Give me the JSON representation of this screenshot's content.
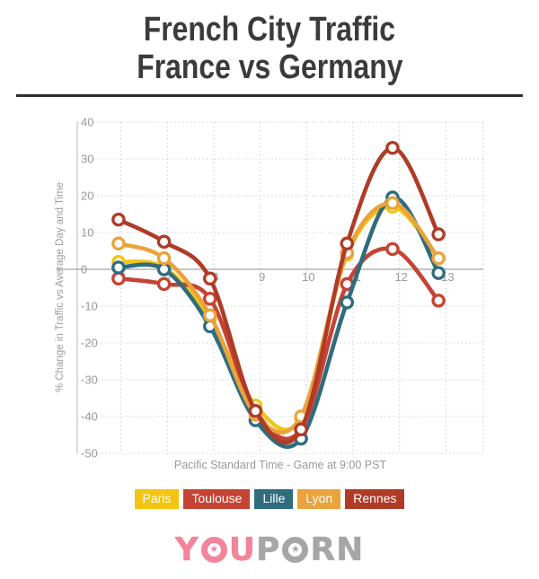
{
  "title": {
    "line1": "French City Traffic",
    "line2": "France vs Germany"
  },
  "chart_data": {
    "type": "line",
    "title": "French City Traffic France vs Germany",
    "xlabel": "Pacific Standard Time - Game at 9:00 PST",
    "ylabel": "% Change in Traffic vs Average Day and Time",
    "x": [
      5.95,
      6.93,
      7.92,
      8.9,
      9.88,
      10.87,
      11.85,
      12.84
    ],
    "x_ticks": [
      6,
      7,
      8,
      9,
      10,
      11,
      12,
      13
    ],
    "y_ticks": [
      40,
      30,
      20,
      10,
      0,
      -10,
      -20,
      -30,
      -40,
      -50
    ],
    "xlim": [
      5.1,
      13.8
    ],
    "ylim": [
      -50,
      40
    ],
    "grid": "dotted",
    "line_style": "smooth",
    "marker": "open-circle",
    "legend_position": "bottom",
    "series": [
      {
        "name": "Paris",
        "color": "#F2C512",
        "values": [
          2,
          0.5,
          -13.5,
          -37,
          -40.5,
          4,
          17,
          3
        ]
      },
      {
        "name": "Toulouse",
        "color": "#C64334",
        "values": [
          -2.5,
          -4,
          -8,
          -38.5,
          -43.5,
          -4,
          5.5,
          -8.5
        ]
      },
      {
        "name": "Lille",
        "color": "#2E6C7E",
        "values": [
          0.5,
          0,
          -15.5,
          -41,
          -46,
          -9,
          19.5,
          -1
        ]
      },
      {
        "name": "Lyon",
        "color": "#EAA33C",
        "values": [
          7,
          3,
          -12.5,
          -39.5,
          -40,
          4.5,
          18,
          3
        ]
      },
      {
        "name": "Rennes",
        "color": "#AF3B27",
        "values": [
          13.5,
          7.5,
          -2.5,
          -38.5,
          -43.5,
          7,
          33,
          9.5
        ]
      }
    ]
  },
  "colors": {
    "grid": "#cfcfcf",
    "zero_line": "#b3b3b3",
    "axis": "#c4c4c4",
    "tick_text": "#9a9a9a",
    "title_text": "#3b3b3b",
    "subtitle_text": "#999999"
  },
  "logo": {
    "pink_text": "you",
    "gray_text": "porn",
    "o_symbol": "★"
  }
}
